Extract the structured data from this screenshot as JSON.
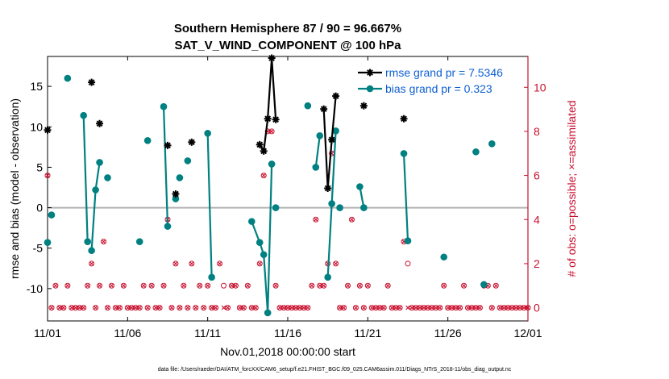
{
  "chart_data": {
    "type": "line",
    "title": "Southern Hemisphere 87 / 90 = 96.667%",
    "subtitle": "SAT_V_WIND_COMPONENT @ 100 hPa",
    "xlabel": "Nov.01,2018 00:00:00 start",
    "ylabel": "rmse and bias (model - observation)",
    "y2label": "# of obs: o=possible; ×=assimilated",
    "footnote": "data file: /Users/raeder/DAI/ATM_forcXX/CAM6_setup/f.e21.FHIST_BGC.f09_025.CAM6assim.011/Diags_NTrS_2018-11/obs_diag_output.nc",
    "xlim": [
      0,
      30
    ],
    "ylim": [
      -14,
      18.7
    ],
    "y2lim": [
      -0.6,
      11.4
    ],
    "x_ticks": [
      0,
      5,
      10,
      15,
      20,
      25,
      30
    ],
    "x_tick_labels": [
      "11/01",
      "11/06",
      "11/11",
      "11/16",
      "11/21",
      "11/26",
      "12/01"
    ],
    "y_ticks": [
      -10,
      -5,
      0,
      5,
      10,
      15
    ],
    "y_tick_labels": [
      "-10",
      "-5",
      "0",
      "5",
      "10",
      "15"
    ],
    "y2_ticks": [
      0,
      2,
      4,
      6,
      8,
      10
    ],
    "y2_tick_labels": [
      "0",
      "2",
      "4",
      "6",
      "8",
      "10"
    ],
    "zero_line": 0,
    "legend_position": "top-right",
    "grid": false,
    "series": [
      {
        "name": "rmse grand pr = 7.5346",
        "color": "#000000",
        "marker": "asterisk",
        "x": [
          0,
          2.75,
          3.25,
          7.5,
          8,
          9,
          13.25,
          13.5,
          13.75,
          14,
          14.25,
          17.25,
          17.5,
          17.75,
          18,
          19.75,
          22.25
        ],
        "y": [
          9.6,
          15.5,
          10.4,
          7.7,
          1.7,
          8.1,
          7.8,
          7.0,
          11.0,
          18.5,
          10.9,
          12.2,
          2.4,
          8.4,
          13.8,
          12.6,
          11.0
        ],
        "segments": [
          [
            13.25,
            13.5,
            13.75,
            14,
            14.25
          ],
          [
            17.25,
            17.5,
            17.75,
            18
          ]
        ]
      },
      {
        "name": "bias grand pr = 0.323",
        "color": "#008080",
        "marker": "circle",
        "x": [
          0,
          0.25,
          1.25,
          2.25,
          2.5,
          2.75,
          3.0,
          3.25,
          3.75,
          5.75,
          6.25,
          7.25,
          7.5,
          8.0,
          8.25,
          8.75,
          10.0,
          10.25,
          12.75,
          13.25,
          13.5,
          13.75,
          14.0,
          14.25,
          16.25,
          16.75,
          17.0,
          17.5,
          17.75,
          18.0,
          18.25,
          19.5,
          19.75,
          22.25,
          22.5,
          24.75,
          26.75,
          27.25,
          27.75
        ],
        "y": [
          -4.3,
          -0.9,
          16.0,
          11.4,
          -4.2,
          -5.3,
          2.2,
          5.6,
          3.7,
          -4.2,
          8.3,
          12.5,
          -2.3,
          1.1,
          3.7,
          5.8,
          9.2,
          -8.6,
          -1.7,
          -4.3,
          -5.8,
          -13.0,
          5.4,
          0,
          12.6,
          5.0,
          8.9,
          -8.6,
          0.5,
          9.5,
          0,
          2.6,
          0,
          6.7,
          -4.1,
          -6.1,
          6.9,
          -9.5,
          7.9
        ],
        "segments": [
          [
            2.25,
            2.5
          ],
          [
            2.75,
            3.0,
            3.25
          ],
          [
            7.25,
            7.5
          ],
          [
            10.0,
            10.25
          ],
          [
            12.75,
            13.25,
            13.5,
            13.75,
            14.0
          ],
          [
            16.75,
            17.0
          ],
          [
            17.5,
            17.75,
            18.0
          ],
          [
            19.5,
            19.75
          ],
          [
            22.25,
            22.5
          ]
        ]
      },
      {
        "name": "obs possible",
        "color": "#c8102e",
        "marker": "open-circle",
        "axis": "right",
        "x": [
          0,
          0.25,
          0.5,
          0.75,
          1.0,
          1.25,
          1.5,
          1.75,
          2.0,
          2.25,
          2.5,
          2.75,
          3.0,
          3.25,
          3.5,
          3.75,
          4.0,
          4.25,
          4.5,
          4.75,
          5.0,
          5.25,
          5.5,
          5.75,
          6.0,
          6.25,
          6.5,
          6.75,
          7.0,
          7.25,
          7.5,
          7.75,
          8.0,
          8.25,
          8.5,
          8.75,
          9.0,
          9.25,
          9.5,
          9.75,
          10.0,
          10.25,
          10.5,
          10.75,
          11.0,
          11.25,
          11.5,
          11.75,
          12.0,
          12.25,
          12.5,
          12.75,
          13.0,
          13.25,
          13.5,
          13.75,
          14.0,
          14.25,
          14.5,
          14.75,
          15.0,
          15.25,
          15.5,
          15.75,
          16.0,
          16.25,
          16.5,
          16.75,
          17.0,
          17.25,
          17.5,
          17.75,
          18.0,
          18.25,
          18.5,
          18.75,
          19.0,
          19.25,
          19.5,
          19.75,
          20.0,
          20.25,
          20.5,
          20.75,
          21.0,
          21.25,
          21.5,
          21.75,
          22.0,
          22.25,
          22.5,
          22.75,
          23.0,
          23.25,
          23.5,
          23.75,
          24.0,
          24.25,
          24.5,
          24.75,
          25.0,
          25.25,
          25.5,
          25.75,
          26.0,
          26.25,
          26.5,
          26.75,
          27.0,
          27.25,
          27.5,
          27.75,
          28.0,
          28.25,
          28.5,
          28.75,
          29.0,
          29.25,
          29.5,
          29.75,
          30.0
        ],
        "y": [
          6,
          0,
          1,
          0,
          0,
          1,
          0,
          0,
          0,
          0,
          1,
          2,
          0,
          1,
          3,
          0,
          1,
          0,
          0,
          1,
          0,
          0,
          0,
          0,
          1,
          0,
          1,
          0,
          0,
          1,
          4,
          0,
          2,
          0,
          1,
          0,
          2,
          0,
          1,
          0,
          1,
          0,
          0,
          2,
          1,
          0,
          1,
          1,
          0,
          0,
          1,
          0,
          0,
          2,
          6,
          8,
          8,
          1,
          0,
          0,
          0,
          0,
          0,
          0,
          0,
          0,
          1,
          4,
          1,
          1,
          2,
          7,
          2,
          0,
          0,
          1,
          4,
          0,
          1,
          0,
          1,
          0,
          0,
          0,
          0,
          1,
          0,
          0,
          0,
          3,
          2,
          0,
          0,
          0,
          0,
          0,
          0,
          0,
          0,
          1,
          0,
          0,
          0,
          0,
          1,
          0,
          0,
          0,
          0,
          1,
          1,
          0,
          1,
          0,
          0,
          0,
          0,
          0,
          0,
          0,
          0
        ]
      },
      {
        "name": "obs assimilated",
        "color": "#c8102e",
        "marker": "cross",
        "axis": "right",
        "x": [
          0,
          0.25,
          0.5,
          0.75,
          1.0,
          1.25,
          1.5,
          1.75,
          2.0,
          2.25,
          2.5,
          2.75,
          3.0,
          3.25,
          3.5,
          3.75,
          4.0,
          4.25,
          4.5,
          4.75,
          5.0,
          5.25,
          5.5,
          5.75,
          6.0,
          6.25,
          6.5,
          6.75,
          7.0,
          7.25,
          7.5,
          7.75,
          8.0,
          8.25,
          8.5,
          8.75,
          9.0,
          9.25,
          9.5,
          9.75,
          10.0,
          10.25,
          10.5,
          10.75,
          11.0,
          11.25,
          11.5,
          11.75,
          12.0,
          12.25,
          12.5,
          12.75,
          13.0,
          13.25,
          13.5,
          13.75,
          14.0,
          14.25,
          14.5,
          14.75,
          15.0,
          15.25,
          15.5,
          15.75,
          16.0,
          16.25,
          16.5,
          16.75,
          17.0,
          17.25,
          17.5,
          17.75,
          18.0,
          18.25,
          18.5,
          18.75,
          19.0,
          19.25,
          19.5,
          19.75,
          20.0,
          20.25,
          20.5,
          20.75,
          21.0,
          21.25,
          21.5,
          21.75,
          22.0,
          22.25,
          22.5,
          22.75,
          23.0,
          23.25,
          23.5,
          23.75,
          24.0,
          24.25,
          24.5,
          24.75,
          25.0,
          25.25,
          25.5,
          25.75,
          26.0,
          26.25,
          26.5,
          26.75,
          27.0,
          27.25,
          27.5,
          27.75,
          28.0,
          28.25,
          28.5,
          28.75,
          29.0,
          29.25,
          29.5,
          29.75,
          30.0
        ],
        "y": [
          6,
          0,
          1,
          0,
          0,
          1,
          0,
          0,
          0,
          0,
          1,
          2,
          0,
          1,
          3,
          0,
          1,
          0,
          0,
          1,
          0,
          0,
          0,
          0,
          1,
          0,
          1,
          0,
          0,
          1,
          4,
          0,
          2,
          0,
          1,
          0,
          2,
          0,
          1,
          0,
          1,
          0,
          0,
          2,
          0,
          0,
          1,
          1,
          0,
          0,
          1,
          0,
          0,
          2,
          6,
          8,
          8,
          1,
          0,
          0,
          0,
          0,
          0,
          0,
          0,
          0,
          1,
          4,
          1,
          1,
          2,
          7,
          2,
          0,
          0,
          1,
          4,
          0,
          1,
          0,
          1,
          0,
          0,
          0,
          0,
          1,
          0,
          0,
          0,
          3,
          0,
          0,
          0,
          0,
          0,
          0,
          0,
          0,
          0,
          1,
          0,
          0,
          0,
          0,
          1,
          0,
          0,
          0,
          0,
          1,
          1,
          0,
          1,
          0,
          0,
          0,
          0,
          0,
          0,
          0,
          0
        ]
      }
    ]
  }
}
